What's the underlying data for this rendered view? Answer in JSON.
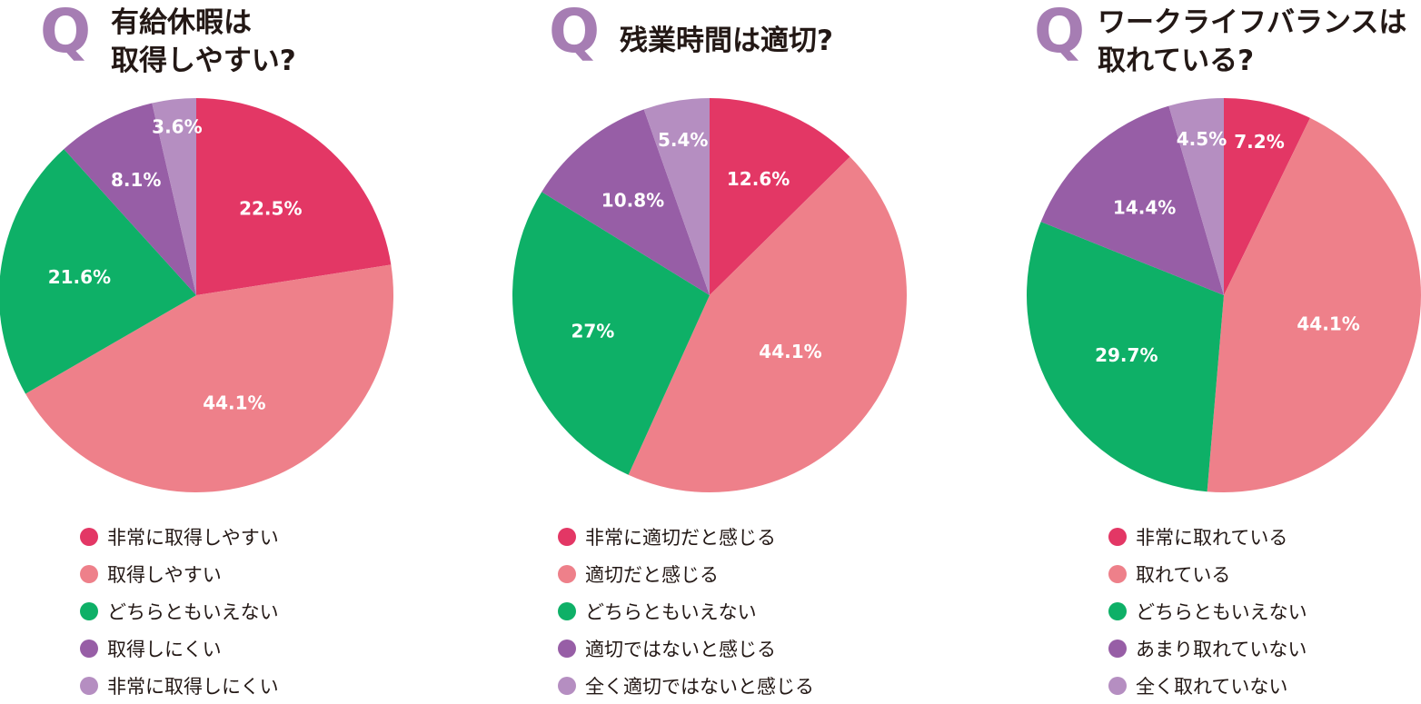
{
  "q_mark": "Q",
  "legend_colors": [
    "#e33765",
    "#ee808a",
    "#0eb067",
    "#975ea6",
    "#b58ec1"
  ],
  "chart_data": [
    {
      "type": "pie",
      "title_lines": [
        "有給休暇は",
        "取得しやすい?"
      ],
      "categories": [
        "非常に取得しやすい",
        "取得しやすい",
        "どちらともいえない",
        "取得しにくい",
        "非常に取得しにくい"
      ],
      "values": [
        22.5,
        44.1,
        21.6,
        8.1,
        3.6
      ],
      "labels": [
        "22.5%",
        "44.1%",
        "21.6%",
        "8.1%",
        "3.6%"
      ],
      "colors": [
        "#e33765",
        "#ee808a",
        "#0eb067",
        "#975ea6",
        "#b58ec1"
      ],
      "start": "12 o'clock, clockwise"
    },
    {
      "type": "pie",
      "title_lines": [
        "残業時間は適切?"
      ],
      "categories": [
        "非常に適切だと感じる",
        "適切だと感じる",
        "どちらともいえない",
        "適切ではないと感じる",
        "全く適切ではないと感じる"
      ],
      "values": [
        12.6,
        44.1,
        27,
        10.8,
        5.4
      ],
      "labels": [
        "12.6%",
        "44.1%",
        "27%",
        "10.8%",
        "5.4%"
      ],
      "colors": [
        "#e33765",
        "#ee808a",
        "#0eb067",
        "#975ea6",
        "#b58ec1"
      ],
      "start": "12 o'clock, clockwise"
    },
    {
      "type": "pie",
      "title_lines": [
        "ワークライフバランスは",
        "取れている?"
      ],
      "categories": [
        "非常に取れている",
        "取れている",
        "どちらともいえない",
        "あまり取れていない",
        "全く取れていない"
      ],
      "values": [
        7.2,
        44.1,
        29.7,
        14.4,
        4.5
      ],
      "labels": [
        "7.2%",
        "44.1%",
        "29.7%",
        "14.4%",
        "4.5%"
      ],
      "colors": [
        "#e33765",
        "#ee808a",
        "#0eb067",
        "#975ea6",
        "#b58ec1"
      ],
      "start": "12 o'clock, clockwise"
    }
  ]
}
